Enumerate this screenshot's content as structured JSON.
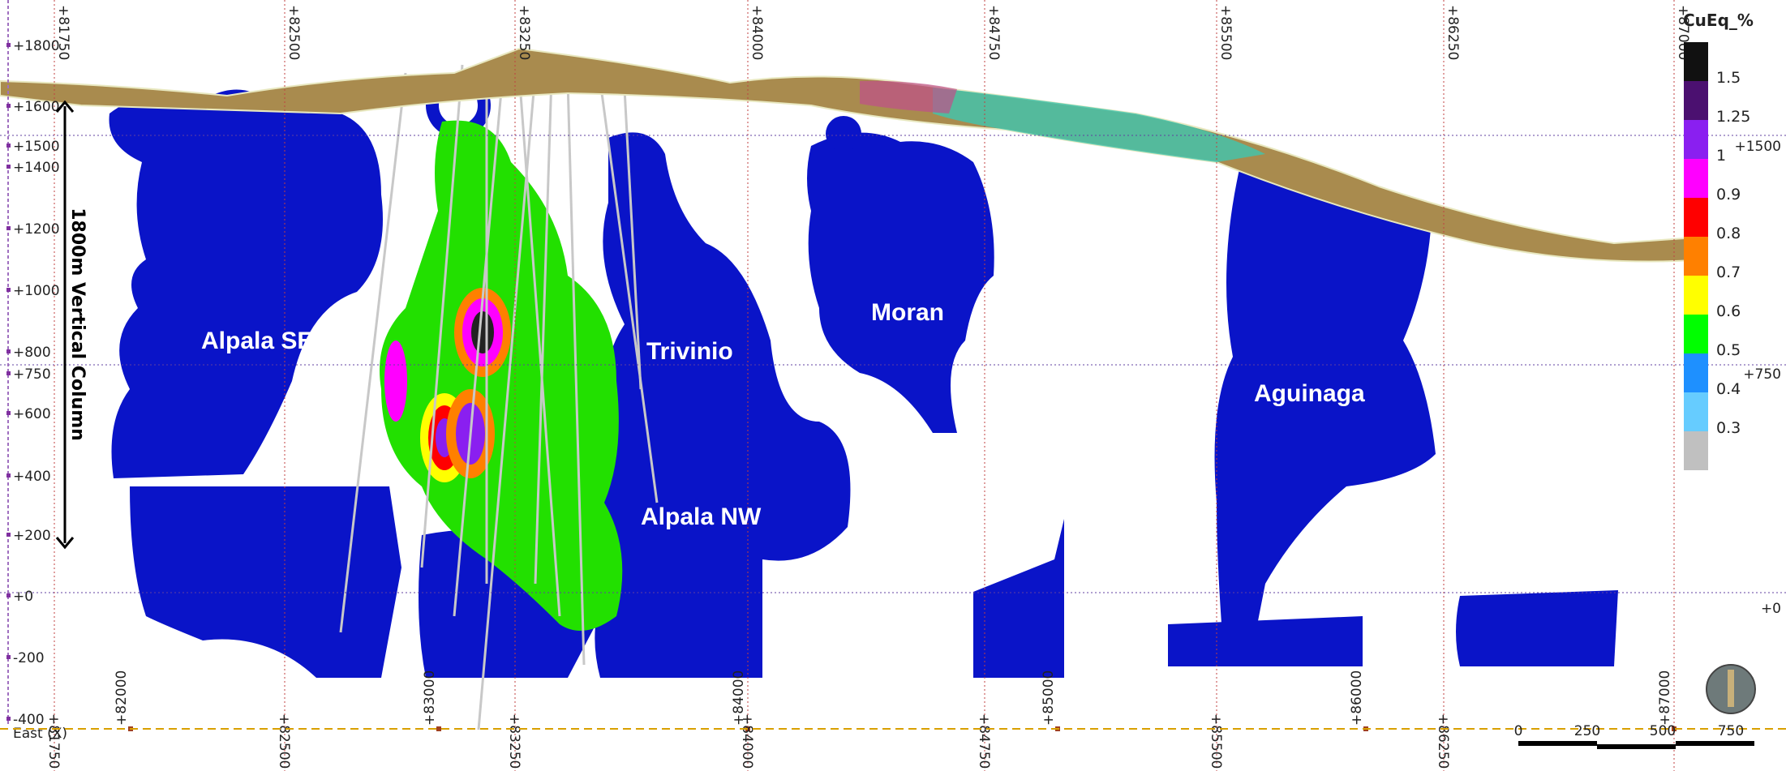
{
  "grid": {
    "top_labels": [
      "+81750",
      "+82500",
      "+83250",
      "+84000",
      "+84750",
      "+85500",
      "+86250",
      "+87000"
    ],
    "left_labels": [
      "+1800",
      "+1600",
      "+1500",
      "+1400",
      "+1200",
      "+1000",
      "+800",
      "+750",
      "+600",
      "+400",
      "+200",
      "+0",
      "-200",
      "-400"
    ],
    "right_labels": [
      "+1500",
      "+750",
      "+0"
    ],
    "bottom_labels": [
      "+82000",
      "+83000",
      "+84000",
      "+85000",
      "+86000",
      "+87000"
    ],
    "bottom_labels_2": [
      "+81750",
      "+82500",
      "+83250",
      "+84000",
      "+84750",
      "+85500",
      "+86250"
    ],
    "axis_name": "East (X)"
  },
  "legend": {
    "title": "CuEq_%",
    "entries": [
      {
        "label": "1.5",
        "color": "#111111"
      },
      {
        "label": "1.25",
        "color": "#4b1070"
      },
      {
        "label": "1",
        "color": "#8a1ff0"
      },
      {
        "label": "0.9",
        "color": "#ff00ff"
      },
      {
        "label": "0.8",
        "color": "#ff0000"
      },
      {
        "label": "0.7",
        "color": "#ff8000"
      },
      {
        "label": "0.6",
        "color": "#ffff00"
      },
      {
        "label": "0.5",
        "color": "#00ff00"
      },
      {
        "label": "0.4",
        "color": "#1e90ff"
      },
      {
        "label": "0.3",
        "color": "#66ccff"
      }
    ]
  },
  "annotations": {
    "column": "1800m Vertical Column",
    "zones": [
      "Alpala SE",
      "Trivinio",
      "Moran",
      "Alpala NW",
      "Aguinaga"
    ]
  },
  "scale_bar": [
    "0",
    "250",
    "500",
    "750"
  ]
}
